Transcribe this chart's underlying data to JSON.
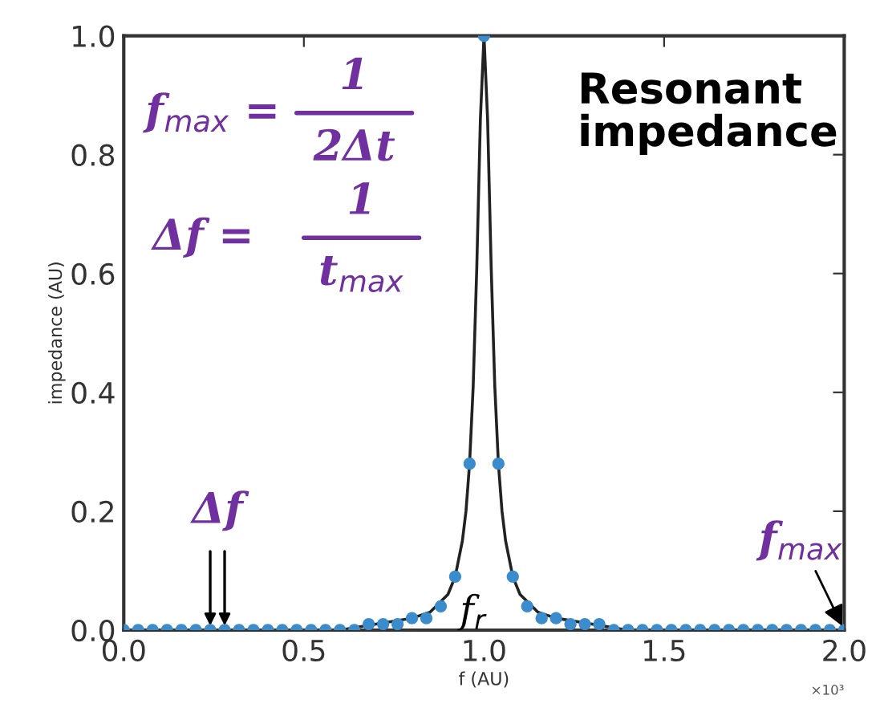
{
  "chart_data": {
    "type": "scatter",
    "xlabel": "f (AU)",
    "ylabel": "impedance (AU)",
    "xlim": [
      0,
      2.0
    ],
    "ylim": [
      0,
      1.0
    ],
    "xticks": [
      {
        "value": 0,
        "label": "0.0"
      },
      {
        "value": 0.5,
        "label": "0.5"
      },
      {
        "value": 1.0,
        "label": "1.0"
      },
      {
        "value": 1.5,
        "label": "1.5"
      },
      {
        "value": 2.0,
        "label": "2.0"
      }
    ],
    "yticks": [
      {
        "value": 0,
        "label": "0.0"
      },
      {
        "value": 0.2,
        "label": "0.2"
      },
      {
        "value": 0.4,
        "label": "0.4"
      },
      {
        "value": 0.6,
        "label": "0.6"
      },
      {
        "value": 0.8,
        "label": "0.8"
      },
      {
        "value": 1.0,
        "label": "1.0"
      }
    ],
    "grid": false,
    "legend": false,
    "series": [
      {
        "type": "line",
        "color": "#222222",
        "marker": "none",
        "line_style": "solid",
        "x": [
          0,
          0.2,
          0.4,
          0.6,
          0.7,
          0.8,
          0.85,
          0.9,
          0.92,
          0.94,
          0.95,
          0.96,
          0.97,
          0.98,
          0.99,
          1.0,
          1.01,
          1.02,
          1.03,
          1.04,
          1.05,
          1.06,
          1.08,
          1.1,
          1.15,
          1.2,
          1.3,
          1.4,
          1.6,
          1.8,
          2.0
        ],
        "values": [
          0.0,
          0.0,
          0.0,
          0.0,
          0.01,
          0.02,
          0.03,
          0.06,
          0.09,
          0.15,
          0.2,
          0.28,
          0.41,
          0.61,
          0.86,
          1.0,
          0.86,
          0.61,
          0.41,
          0.28,
          0.2,
          0.15,
          0.09,
          0.06,
          0.03,
          0.02,
          0.01,
          0.0,
          0.0,
          0.0,
          0.0
        ]
      },
      {
        "color": "#3a8ccc",
        "marker": "circle",
        "x": [
          0,
          0.04,
          0.08,
          0.12,
          0.16,
          0.2,
          0.24,
          0.28,
          0.32,
          0.36,
          0.4,
          0.44,
          0.48,
          0.52,
          0.56,
          0.6,
          0.64,
          0.68,
          0.72,
          0.76,
          0.8,
          0.84,
          0.88,
          0.92,
          0.96,
          1.0,
          1.04,
          1.08,
          1.12,
          1.16,
          1.2,
          1.24,
          1.28,
          1.32,
          1.36,
          1.4,
          1.44,
          1.48,
          1.52,
          1.56,
          1.6,
          1.64,
          1.68,
          1.72,
          1.76,
          1.8,
          1.84,
          1.88,
          1.92,
          1.96,
          2.0
        ],
        "values": [
          0.0,
          0.0,
          0.0,
          0.0,
          0.0,
          0.0,
          0.0,
          0.0,
          0.0,
          0.0,
          0.0,
          0.0,
          0.0,
          0.0,
          0.0,
          0.0,
          0.0,
          0.01,
          0.01,
          0.01,
          0.02,
          0.02,
          0.04,
          0.09,
          0.28,
          1.0,
          0.28,
          0.09,
          0.04,
          0.02,
          0.02,
          0.01,
          0.01,
          0.01,
          0.0,
          0.0,
          0.0,
          0.0,
          0.0,
          0.0,
          0.0,
          0.0,
          0.0,
          0.0,
          0.0,
          0.0,
          0.0,
          0.0,
          0.0,
          0.0,
          0.0
        ]
      }
    ],
    "annotations": [
      "f$_{max}$ =",
      "1",
      "2Δt",
      "Δf =",
      "1",
      "t$_{max}$",
      "Resonant\nimpedance",
      {
        "text": "Δf",
        "x": 0.24,
        "y": 0
      },
      {
        "text": "f$_{max}$",
        "x": 2.0,
        "y": 0
      },
      "f$_{r}$",
      "×10³"
    ]
  }
}
